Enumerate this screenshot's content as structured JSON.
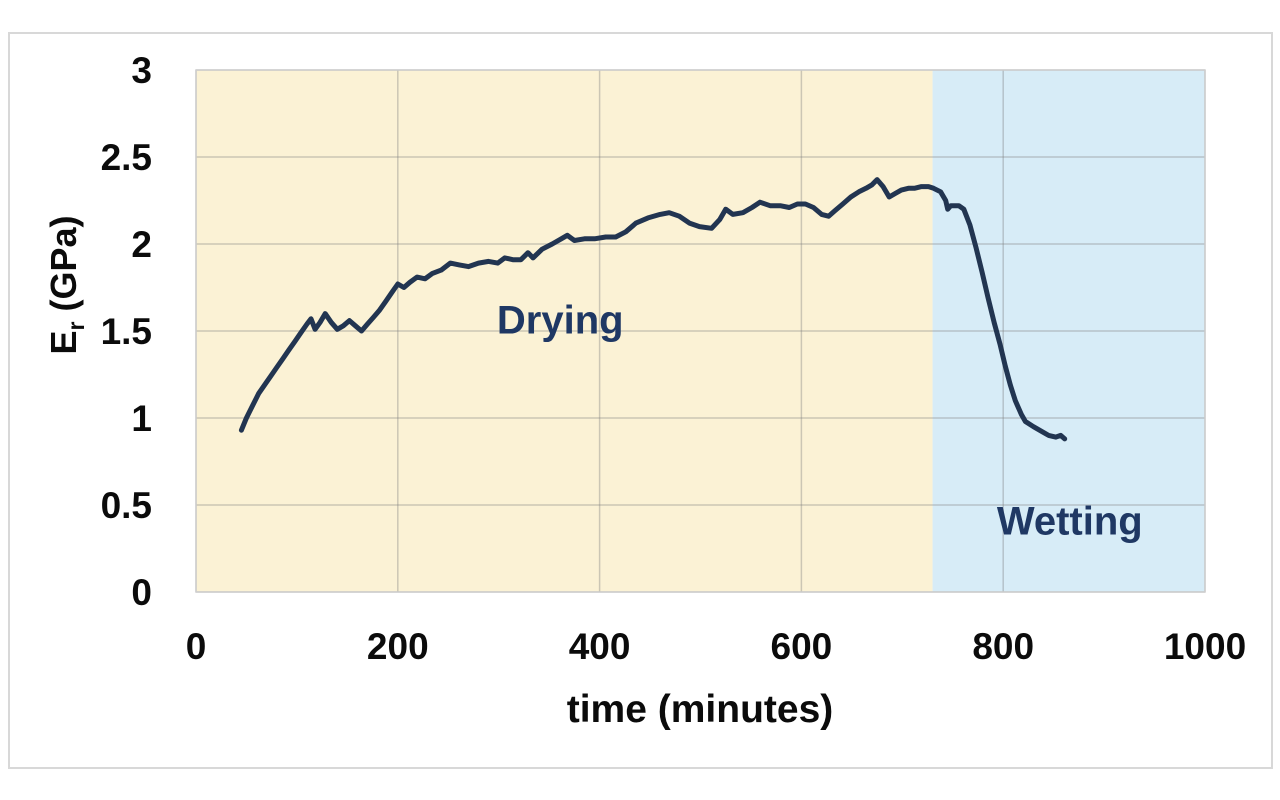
{
  "figure": {
    "background": "#ffffff",
    "border_color": "#d8d8d8"
  },
  "chart_data": {
    "type": "line",
    "title": "",
    "xlabel": "time (minutes)",
    "ylabel": "Er (GPa)",
    "ylabel_parts": {
      "symbol": "E",
      "subscript": "r",
      "units": " (GPa)"
    },
    "xlim": [
      0,
      1000
    ],
    "ylim": [
      0,
      3
    ],
    "x_ticks": [
      0,
      200,
      400,
      600,
      800,
      1000
    ],
    "x_tick_labels": [
      "0",
      "200",
      "400",
      "600",
      "800",
      "1000"
    ],
    "y_ticks": [
      0,
      0.5,
      1,
      1.5,
      2,
      2.5,
      3
    ],
    "y_tick_labels": [
      "0",
      "0.5",
      "1",
      "1.5",
      "2",
      "2.5",
      "3"
    ],
    "grid": true,
    "legend": "none",
    "colors": {
      "line": "#223551",
      "drying_fill": "#FBF2D5",
      "wetting_fill": "#D7ECF7",
      "label_text": "#1F3864",
      "axis_text": "#0b0b0b",
      "gridline": "rgba(125,125,125,0.38)",
      "plot_border": "#cfcfcf"
    },
    "regions": [
      {
        "label": "Drying",
        "x_start": 0,
        "x_end": 730,
        "label_pos": {
          "t": 361,
          "E": 1.56
        }
      },
      {
        "label": "Wetting",
        "x_start": 730,
        "x_end": 1000,
        "label_pos": {
          "t": 866,
          "E": 0.4
        }
      }
    ],
    "series": [
      {
        "name": "Er vs time",
        "points": [
          [
            45,
            0.93
          ],
          [
            50,
            1.0
          ],
          [
            56,
            1.07
          ],
          [
            62,
            1.14
          ],
          [
            68,
            1.19
          ],
          [
            74,
            1.24
          ],
          [
            80,
            1.29
          ],
          [
            86,
            1.34
          ],
          [
            92,
            1.39
          ],
          [
            98,
            1.44
          ],
          [
            104,
            1.49
          ],
          [
            110,
            1.54
          ],
          [
            114,
            1.57
          ],
          [
            118,
            1.51
          ],
          [
            123,
            1.55
          ],
          [
            128,
            1.6
          ],
          [
            134,
            1.55
          ],
          [
            140,
            1.51
          ],
          [
            146,
            1.53
          ],
          [
            152,
            1.56
          ],
          [
            158,
            1.53
          ],
          [
            164,
            1.5
          ],
          [
            170,
            1.54
          ],
          [
            176,
            1.58
          ],
          [
            182,
            1.62
          ],
          [
            188,
            1.67
          ],
          [
            194,
            1.72
          ],
          [
            200,
            1.77
          ],
          [
            206,
            1.75
          ],
          [
            212,
            1.78
          ],
          [
            219,
            1.81
          ],
          [
            227,
            1.8
          ],
          [
            234,
            1.83
          ],
          [
            243,
            1.85
          ],
          [
            252,
            1.89
          ],
          [
            261,
            1.88
          ],
          [
            270,
            1.87
          ],
          [
            280,
            1.89
          ],
          [
            290,
            1.9
          ],
          [
            299,
            1.89
          ],
          [
            306,
            1.92
          ],
          [
            314,
            1.91
          ],
          [
            322,
            1.91
          ],
          [
            329,
            1.95
          ],
          [
            334,
            1.92
          ],
          [
            343,
            1.97
          ],
          [
            353,
            2.0
          ],
          [
            362,
            2.03
          ],
          [
            368,
            2.05
          ],
          [
            375,
            2.02
          ],
          [
            385,
            2.03
          ],
          [
            395,
            2.03
          ],
          [
            406,
            2.04
          ],
          [
            416,
            2.04
          ],
          [
            426,
            2.07
          ],
          [
            436,
            2.12
          ],
          [
            448,
            2.15
          ],
          [
            460,
            2.17
          ],
          [
            469,
            2.18
          ],
          [
            479,
            2.16
          ],
          [
            489,
            2.12
          ],
          [
            499,
            2.1
          ],
          [
            511,
            2.09
          ],
          [
            519,
            2.14
          ],
          [
            525,
            2.2
          ],
          [
            532,
            2.17
          ],
          [
            542,
            2.18
          ],
          [
            551,
            2.21
          ],
          [
            559,
            2.24
          ],
          [
            569,
            2.22
          ],
          [
            579,
            2.22
          ],
          [
            588,
            2.21
          ],
          [
            596,
            2.23
          ],
          [
            604,
            2.23
          ],
          [
            612,
            2.21
          ],
          [
            620,
            2.17
          ],
          [
            627,
            2.16
          ],
          [
            633,
            2.19
          ],
          [
            641,
            2.23
          ],
          [
            649,
            2.27
          ],
          [
            657,
            2.3
          ],
          [
            664,
            2.32
          ],
          [
            670,
            2.34
          ],
          [
            675,
            2.37
          ],
          [
            681,
            2.33
          ],
          [
            687,
            2.27
          ],
          [
            693,
            2.29
          ],
          [
            699,
            2.31
          ],
          [
            706,
            2.32
          ],
          [
            712,
            2.32
          ],
          [
            719,
            2.33
          ],
          [
            726,
            2.33
          ],
          [
            731,
            2.32
          ],
          [
            738,
            2.3
          ],
          [
            743,
            2.25
          ],
          [
            745,
            2.2
          ],
          [
            748,
            2.22
          ],
          [
            756,
            2.22
          ],
          [
            761,
            2.2
          ],
          [
            767,
            2.11
          ],
          [
            773,
            1.98
          ],
          [
            779,
            1.84
          ],
          [
            785,
            1.69
          ],
          [
            791,
            1.55
          ],
          [
            797,
            1.42
          ],
          [
            802,
            1.3
          ],
          [
            807,
            1.19
          ],
          [
            812,
            1.1
          ],
          [
            818,
            1.02
          ],
          [
            822,
            0.98
          ],
          [
            830,
            0.95
          ],
          [
            839,
            0.92
          ],
          [
            845,
            0.9
          ],
          [
            852,
            0.89
          ],
          [
            857,
            0.9
          ],
          [
            861,
            0.88
          ]
        ]
      }
    ]
  }
}
